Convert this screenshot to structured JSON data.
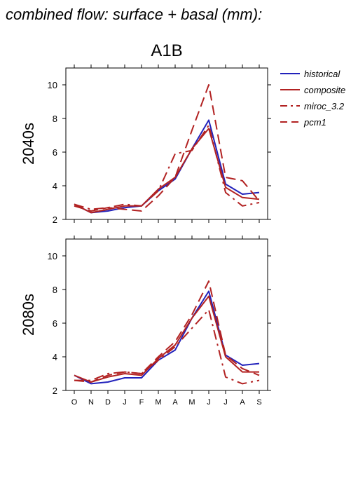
{
  "page_title": "combined flow: surface + basal (mm):",
  "chart_data": {
    "type": "line",
    "title": "A1B",
    "categories": [
      "O",
      "N",
      "D",
      "J",
      "F",
      "M",
      "A",
      "M",
      "J",
      "J",
      "A",
      "S"
    ],
    "ylim": [
      2,
      11
    ],
    "yticks": [
      2,
      4,
      6,
      8,
      10
    ],
    "grid": false,
    "legend_position": "right",
    "legend": [
      {
        "name": "historical",
        "color": "#2222bb",
        "dash": "solid"
      },
      {
        "name": "composite",
        "color": "#b22222",
        "dash": "solid"
      },
      {
        "name": "miroc_3.2",
        "color": "#b22222",
        "dash": "dashdot"
      },
      {
        "name": "pcm1",
        "color": "#b22222",
        "dash": "dash"
      }
    ],
    "panels": [
      {
        "label": "2040s",
        "series": [
          {
            "name": "historical",
            "values": [
              2.9,
              2.4,
              2.5,
              2.7,
              2.8,
              3.7,
              4.4,
              6.2,
              7.9,
              4.1,
              3.5,
              3.6
            ]
          },
          {
            "name": "composite",
            "values": [
              2.9,
              2.4,
              2.6,
              2.8,
              2.8,
              3.8,
              4.5,
              6.2,
              7.4,
              3.9,
              3.3,
              3.2
            ]
          },
          {
            "name": "miroc_3.2",
            "values": [
              2.9,
              2.6,
              2.7,
              2.9,
              2.8,
              3.7,
              5.9,
              6.1,
              7.6,
              3.6,
              2.8,
              3.0
            ]
          },
          {
            "name": "pcm1",
            "values": [
              2.8,
              2.5,
              2.7,
              2.6,
              2.5,
              3.4,
              4.5,
              7.3,
              10.0,
              4.5,
              4.3,
              3.1
            ]
          }
        ]
      },
      {
        "label": "2080s",
        "series": [
          {
            "name": "historical",
            "values": [
              2.9,
              2.4,
              2.5,
              2.75,
              2.75,
              3.8,
              4.4,
              6.3,
              7.9,
              4.1,
              3.5,
              3.6
            ]
          },
          {
            "name": "composite",
            "values": [
              2.9,
              2.5,
              2.8,
              3.0,
              2.9,
              3.9,
              4.7,
              6.3,
              7.6,
              4.0,
              3.1,
              3.1
            ]
          },
          {
            "name": "miroc_3.2",
            "values": [
              2.6,
              2.6,
              3.0,
              3.1,
              3.0,
              3.8,
              4.6,
              5.7,
              6.8,
              2.8,
              2.4,
              2.6
            ]
          },
          {
            "name": "pcm1",
            "values": [
              2.6,
              2.5,
              2.9,
              3.1,
              3.0,
              4.0,
              4.9,
              6.5,
              8.5,
              4.1,
              3.3,
              2.9
            ]
          }
        ]
      }
    ]
  }
}
